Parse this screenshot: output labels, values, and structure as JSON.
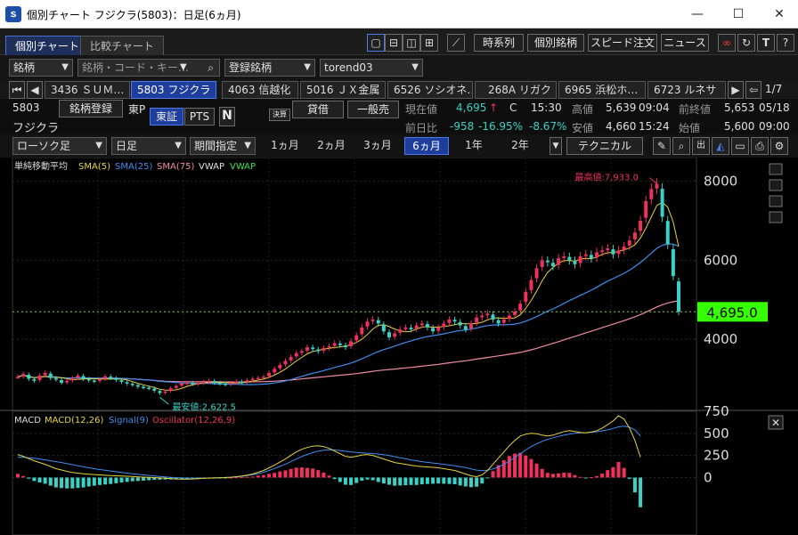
{
  "window": {
    "title": "個別チャート フジクラ(5803)：日足(6ヵ月)",
    "app_icon": "ｓ"
  },
  "tabs": [
    "個別チャート",
    "比較チャート"
  ],
  "toolbar": {
    "timeseries": "時系列",
    "stock": "個別銘柄",
    "speed_order": "スピード注文",
    "news": "ニュース"
  },
  "search": {
    "type_select": "銘柄",
    "placeholder": "銘柄・コード・キー…",
    "registered": "登録銘柄",
    "list": "torend03"
  },
  "stock_tabs": [
    "3436 ＳＵＭ…",
    "5803 フジクラ",
    "4063 信越化",
    "5016 ＪＸ金属",
    "6526 ソシオネ…",
    "268A リガク",
    "6965 浜松ホ…",
    "6723 ルネサ"
  ],
  "paging": "1/7",
  "stock": {
    "code": "5803",
    "name": "フジクラ",
    "register": "銘柄登録",
    "market": "東P",
    "exchange": "東証",
    "pts": "PTS",
    "n": "N",
    "settle": "決算",
    "lend": "貸借",
    "general_sell": "一般売",
    "current_label": "現在値",
    "current": "4,695",
    "current_arrow": "↑",
    "current_flag": "C",
    "current_time": "15:30",
    "high_label": "高値",
    "high": "5,639",
    "high_time": "09:04",
    "prev_close_label": "前終値",
    "prev_close": "5,653",
    "prev_close_date": "05/18",
    "change_label": "前日比",
    "change": "-958",
    "change_pct": "-16.95%",
    "change_pct2": "-8.67%",
    "low_label": "安値",
    "low": "4,660",
    "low_time": "15:24",
    "open_label": "始値",
    "open": "5,600",
    "open_time": "09:00"
  },
  "controls": {
    "candle": "ローソク足",
    "interval": "日足",
    "period_spec": "期間指定",
    "periods": [
      "1ヵ月",
      "2ヵ月",
      "3ヵ月",
      "6ヵ月",
      "1年",
      "2年"
    ],
    "technical": "テクニカル"
  },
  "indicators": {
    "title": "単純移動平均",
    "sma5": "SMA(5)",
    "sma25": "SMA(25)",
    "sma75": "SMA(75)",
    "vwap1": "VWAP",
    "vwap2": "VWAP",
    "colors": {
      "sma5": "#e8d23a",
      "sma25": "#3f8ef0",
      "sma75": "#f08aa6",
      "vwap1": "#e0e0e0",
      "vwap2": "#36e34a"
    }
  },
  "macd_legend": {
    "title": "MACD",
    "macd": "MACD(12,26)",
    "signal": "Signal(9)",
    "osc": "Oscillator(12,26,9)",
    "colors": {
      "macd": "#e8d23a",
      "signal": "#3f8ef0",
      "osc": "#f0305f"
    }
  },
  "chart_data": [
    {
      "type": "candlestick",
      "ylim": [
        2200,
        8600
      ],
      "yticks": [
        8000,
        6000,
        4000
      ],
      "ytick_labels": [
        "8000",
        "6000",
        "4000"
      ],
      "last_price": "4,695.0",
      "last_value": 4695,
      "max_label": "最高値:7,933.0",
      "max_value": 7933,
      "min_label": "最安値:2,622.5",
      "min_value": 2622.5,
      "closes": [
        3050,
        3120,
        3000,
        2950,
        3080,
        3150,
        3020,
        2980,
        2900,
        2950,
        3020,
        3080,
        3000,
        2960,
        2940,
        2990,
        3060,
        3020,
        2970,
        2920,
        2880,
        2850,
        2800,
        2780,
        2760,
        2700,
        2640,
        2680,
        2760,
        2820,
        2880,
        2900,
        2870,
        2890,
        2920,
        2950,
        2900,
        2880,
        2860,
        2900,
        2930,
        2920,
        2960,
        3000,
        3020,
        3050,
        3150,
        3250,
        3350,
        3450,
        3550,
        3650,
        3700,
        3800,
        3750,
        3700,
        3780,
        3820,
        3900,
        3850,
        3800,
        3950,
        4100,
        4300,
        4450,
        4500,
        4400,
        4200,
        4050,
        4150,
        4250,
        4300,
        4250,
        4350,
        4400,
        4300,
        4200,
        4300,
        4400,
        4500,
        4450,
        4350,
        4250,
        4400,
        4550,
        4600,
        4650,
        4500,
        4400,
        4500,
        4600,
        4700,
        4900,
        5200,
        5500,
        5800,
        6000,
        5950,
        5850,
        6050,
        6100,
        6000,
        5900,
        6100,
        6150,
        6050,
        6200,
        6250,
        6300,
        6150,
        6250,
        6350,
        6500,
        6700,
        7000,
        7500,
        7800,
        7933,
        7100,
        6400,
        5600,
        4695
      ]
    },
    {
      "type": "macd",
      "ylim": [
        -650,
        750
      ],
      "yticks": [
        750,
        500,
        250,
        0
      ],
      "ytick_labels": [
        "750",
        "500",
        "250",
        "0"
      ],
      "macd": [
        260,
        240,
        215,
        190,
        170,
        150,
        125,
        100,
        85,
        70,
        58,
        50,
        42,
        38,
        34,
        30,
        26,
        22,
        20,
        18,
        15,
        12,
        8,
        5,
        2,
        0,
        -4,
        -8,
        -12,
        -16,
        -18,
        -18,
        -16,
        -12,
        -8,
        -6,
        -4,
        -2,
        0,
        4,
        10,
        18,
        28,
        40,
        60,
        80,
        110,
        140,
        175,
        210,
        250,
        290,
        320,
        340,
        355,
        360,
        350,
        330,
        300,
        270,
        240,
        230,
        240,
        255,
        260,
        250,
        230,
        210,
        190,
        170,
        160,
        150,
        140,
        130,
        125,
        120,
        115,
        110,
        100,
        90,
        80,
        60,
        40,
        20,
        10,
        30,
        80,
        150,
        220,
        290,
        360,
        420,
        470,
        490,
        500,
        495,
        480,
        470,
        480,
        500,
        520,
        530,
        520,
        510,
        505,
        515,
        530,
        560,
        600,
        640,
        700,
        660,
        560,
        420,
        230
      ],
      "signal": [
        230,
        228,
        224,
        218,
        210,
        200,
        190,
        180,
        170,
        158,
        146,
        134,
        122,
        110,
        100,
        90,
        82,
        74,
        66,
        58,
        50,
        42,
        36,
        30,
        24,
        18,
        13,
        8,
        3,
        -1,
        -4,
        -6,
        -7,
        -7,
        -6,
        -5,
        -3,
        -1,
        1,
        4,
        8,
        14,
        22,
        32,
        44,
        60,
        80,
        102,
        126,
        152,
        180,
        210,
        238,
        262,
        282,
        300,
        310,
        314,
        312,
        306,
        298,
        290,
        284,
        280,
        276,
        272,
        266,
        258,
        248,
        236,
        224,
        212,
        200,
        190,
        180,
        172,
        165,
        158,
        150,
        142,
        134,
        124,
        112,
        98,
        84,
        78,
        82,
        98,
        120,
        150,
        186,
        226,
        270,
        312,
        350,
        382,
        410,
        432,
        450,
        466,
        480,
        492,
        500,
        505,
        508,
        512,
        518,
        528,
        540,
        556,
        574,
        582,
        570,
        540,
        470
      ]
    }
  ]
}
